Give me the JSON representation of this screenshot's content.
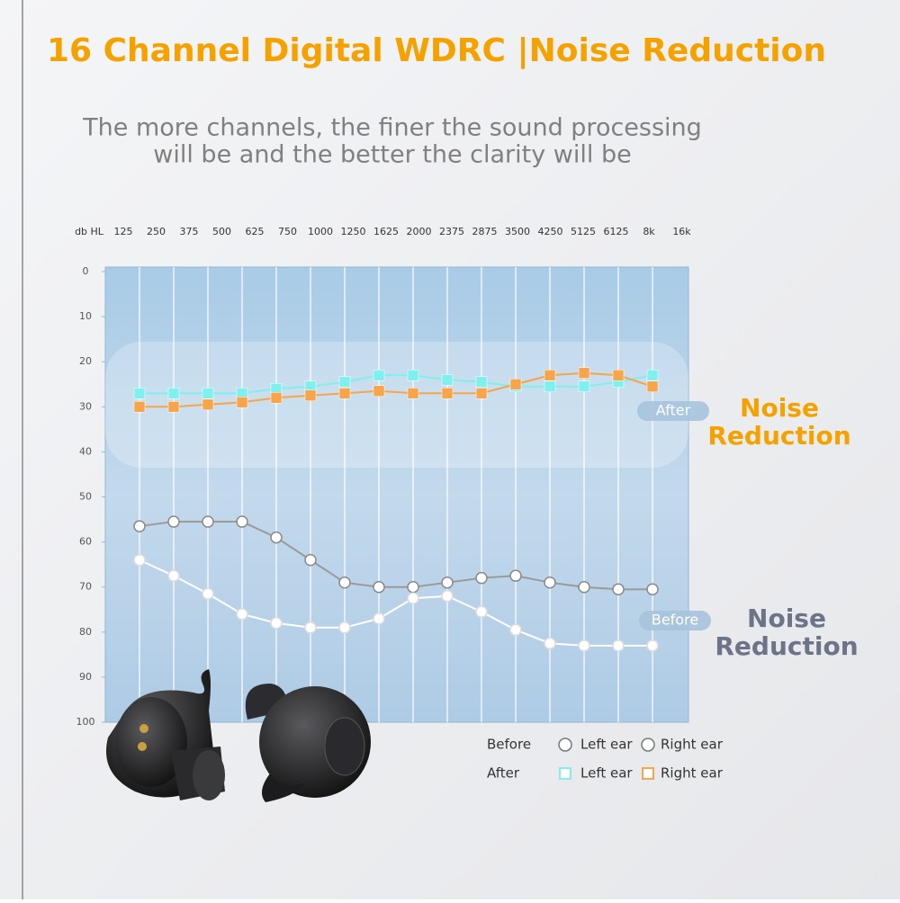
{
  "chart_data": {
    "type": "line",
    "title": "16 Channel Digital WDRC  |Noise Reduction",
    "subtitle": [
      "The more channels, the finer the sound processing",
      "will be and the better the clarity will be"
    ],
    "y_label": "db HL",
    "categories": [
      "125",
      "250",
      "375",
      "500",
      "625",
      "750",
      "1000",
      "1250",
      "1625",
      "2000",
      "2375",
      "2875",
      "3500",
      "4250",
      "5125",
      "6125",
      "8k",
      "16k"
    ],
    "ylim": [
      0,
      100
    ],
    "yticks": [
      0,
      10,
      20,
      30,
      40,
      50,
      60,
      70,
      80,
      90,
      100
    ],
    "y_inverted": true,
    "series": [
      {
        "group": "Before",
        "name": "Left ear",
        "marker": "circle",
        "color": "#9a9a9a",
        "values": [
          null,
          56.5,
          55.5,
          55.5,
          55.5,
          59,
          64,
          69,
          70,
          70,
          69,
          68,
          67.5,
          69,
          70,
          70.5,
          70.5,
          null
        ]
      },
      {
        "group": "Before",
        "name": "Right ear",
        "marker": "circle",
        "color": "#ffffff",
        "values": [
          null,
          64,
          67.5,
          71.5,
          76,
          78,
          79,
          79,
          77,
          72.5,
          72,
          75.5,
          79.5,
          82.5,
          83,
          83,
          83,
          null
        ]
      },
      {
        "group": "After",
        "name": "Left ear",
        "marker": "square",
        "color": "#7ff0ee",
        "values": [
          null,
          27,
          27,
          27,
          27,
          26,
          25.5,
          24.5,
          23,
          23,
          24,
          24.5,
          25.5,
          25.5,
          25.5,
          24.5,
          23,
          null
        ]
      },
      {
        "group": "After",
        "name": "Right ear",
        "marker": "square",
        "color": "#f7a44a",
        "values": [
          null,
          30,
          30,
          29.5,
          29,
          28,
          27.5,
          27,
          26.5,
          27,
          27,
          27,
          25,
          23,
          22.5,
          23,
          25.5,
          null
        ]
      }
    ],
    "annotations": [
      {
        "tag": "After",
        "text": [
          "Noise",
          "Reduction"
        ],
        "color": "#f5a100"
      },
      {
        "tag": "Before",
        "text": [
          "Noise",
          "Reduction"
        ],
        "color": "#6d7488"
      }
    ]
  }
}
